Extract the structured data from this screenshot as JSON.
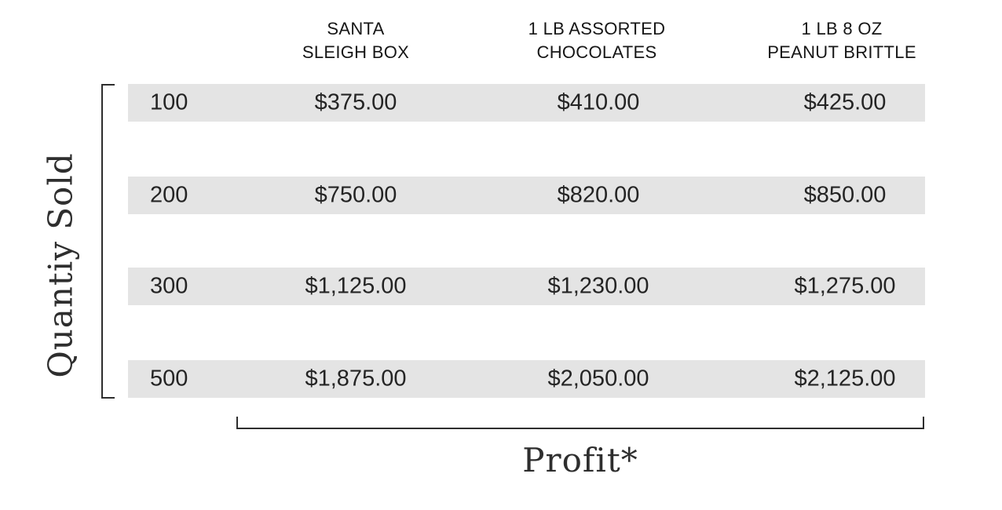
{
  "figure": {
    "y_axis_label": "Quantiy Sold",
    "x_axis_label": "Profit*"
  },
  "table": {
    "headers": [
      {
        "text": "SANTA\nSLEIGH BOX"
      },
      {
        "text": "1 LB ASSORTED\nCHOCOLATES"
      },
      {
        "text": "1 LB 8 OZ\nPEANUT BRITTLE"
      }
    ],
    "rows": [
      {
        "quantity": "100",
        "values": [
          "$375.00",
          "$410.00",
          "$425.00"
        ]
      },
      {
        "quantity": "200",
        "values": [
          "$750.00",
          "$820.00",
          "$850.00"
        ]
      },
      {
        "quantity": "300",
        "values": [
          "$1,125.00",
          "$1,230.00",
          "$1,275.00"
        ]
      },
      {
        "quantity": "500",
        "values": [
          "$1,875.00",
          "$2,050.00",
          "$2,125.00"
        ]
      }
    ]
  },
  "chart_data": {
    "type": "table",
    "title": "",
    "xlabel": "Profit*",
    "ylabel": "Quantiy Sold",
    "categories": [
      "100",
      "200",
      "300",
      "500"
    ],
    "series": [
      {
        "name": "SANTA SLEIGH BOX",
        "values": [
          375.0,
          750.0,
          1125.0,
          1875.0
        ]
      },
      {
        "name": "1 LB ASSORTED CHOCOLATES",
        "values": [
          410.0,
          820.0,
          1230.0,
          2050.0
        ]
      },
      {
        "name": "1 LB 8 OZ PEANUT BRITTLE",
        "values": [
          425.0,
          850.0,
          1275.0,
          2125.0
        ]
      }
    ]
  },
  "colors": {
    "row_band": "#e4e4e4",
    "text": "#1f1f1f",
    "line": "#2e2e2e",
    "background": "#ffffff"
  }
}
